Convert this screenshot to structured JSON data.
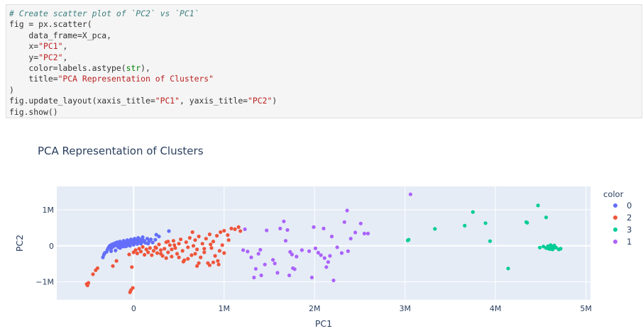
{
  "code_cell": {
    "lines": [
      [
        {
          "t": "# Create scatter plot of `PC2` vs `PC1`",
          "c": "comment"
        }
      ],
      [
        {
          "t": "fig = px.scatter(",
          "c": "kw"
        }
      ],
      [
        {
          "t": "    data_frame=X_pca,",
          "c": "kw"
        }
      ],
      [
        {
          "t": "    x=",
          "c": "kw"
        },
        {
          "t": "\"PC1\"",
          "c": "str"
        },
        {
          "t": ",",
          "c": "kw"
        }
      ],
      [
        {
          "t": "    y=",
          "c": "kw"
        },
        {
          "t": "\"PC2\"",
          "c": "str"
        },
        {
          "t": ",",
          "c": "kw"
        }
      ],
      [
        {
          "t": "    color=labels.astype(",
          "c": "kw"
        },
        {
          "t": "str",
          "c": "builtin"
        },
        {
          "t": "),",
          "c": "kw"
        }
      ],
      [
        {
          "t": "    title=",
          "c": "kw"
        },
        {
          "t": "\"PCA Representation of Clusters\"",
          "c": "str"
        }
      ],
      [
        {
          "t": ")",
          "c": "kw"
        }
      ],
      [
        {
          "t": "fig.update_layout(xaxis_title=",
          "c": "kw"
        },
        {
          "t": "\"PC1\"",
          "c": "str"
        },
        {
          "t": ", yaxis_title=",
          "c": "kw"
        },
        {
          "t": "\"PC2\"",
          "c": "str"
        },
        {
          "t": ")",
          "c": "kw"
        }
      ],
      [
        {
          "t": "fig.show()",
          "c": "kw"
        }
      ]
    ]
  },
  "chart_data": {
    "type": "scatter",
    "title": "PCA Representation of Clusters",
    "xlabel": "PC1",
    "ylabel": "PC2",
    "xlim": [
      -850000,
      5050000
    ],
    "ylim": [
      -1500000,
      1650000
    ],
    "x_ticks": [
      {
        "value": 0,
        "label": "0"
      },
      {
        "value": 1000000,
        "label": "1M"
      },
      {
        "value": 2000000,
        "label": "2M"
      },
      {
        "value": 3000000,
        "label": "3M"
      },
      {
        "value": 4000000,
        "label": "4M"
      },
      {
        "value": 5000000,
        "label": "5M"
      }
    ],
    "y_ticks": [
      {
        "value": -1000000,
        "label": "−1M"
      },
      {
        "value": 0,
        "label": "0"
      },
      {
        "value": 1000000,
        "label": "1M"
      }
    ],
    "grid": true,
    "plot_bg": "#e5ecf6",
    "legend": {
      "title": "color",
      "placement": "right"
    },
    "series": [
      {
        "name": "0",
        "color": "#636efa",
        "points": [
          [
            -340000,
            -320000
          ],
          [
            -330000,
            -250000
          ],
          [
            -320000,
            -200000
          ],
          [
            -300000,
            -170000
          ],
          [
            -290000,
            -110000
          ],
          [
            -280000,
            -60000
          ],
          [
            -270000,
            -20000
          ],
          [
            -260000,
            10000
          ],
          [
            -250000,
            -80000
          ],
          [
            -240000,
            40000
          ],
          [
            -230000,
            -30000
          ],
          [
            -220000,
            60000
          ],
          [
            -210000,
            0
          ],
          [
            -200000,
            80000
          ],
          [
            -190000,
            20000
          ],
          [
            -180000,
            100000
          ],
          [
            -170000,
            -40000
          ],
          [
            -160000,
            50000
          ],
          [
            -150000,
            120000
          ],
          [
            -140000,
            10000
          ],
          [
            -130000,
            80000
          ],
          [
            -120000,
            -20000
          ],
          [
            -110000,
            140000
          ],
          [
            -100000,
            40000
          ],
          [
            -90000,
            100000
          ],
          [
            -80000,
            -10000
          ],
          [
            -70000,
            160000
          ],
          [
            -60000,
            60000
          ],
          [
            -50000,
            120000
          ],
          [
            -40000,
            0
          ],
          [
            -30000,
            180000
          ],
          [
            -20000,
            80000
          ],
          [
            -10000,
            140000
          ],
          [
            0,
            30000
          ],
          [
            10000,
            200000
          ],
          [
            20000,
            100000
          ],
          [
            30000,
            160000
          ],
          [
            40000,
            50000
          ],
          [
            50000,
            220000
          ],
          [
            60000,
            120000
          ],
          [
            70000,
            180000
          ],
          [
            80000,
            60000
          ],
          [
            90000,
            100000
          ],
          [
            100000,
            240000
          ],
          [
            110000,
            150000
          ],
          [
            130000,
            80000
          ],
          [
            150000,
            200000
          ],
          [
            170000,
            120000
          ],
          [
            190000,
            180000
          ],
          [
            210000,
            90000
          ],
          [
            240000,
            170000
          ],
          [
            280000,
            260000
          ],
          [
            390000,
            410000
          ],
          [
            250000,
            310000
          ],
          [
            -200000,
            -130000
          ],
          [
            -150000,
            -60000
          ],
          [
            -100000,
            -20000
          ],
          [
            -60000,
            20000
          ],
          [
            -250000,
            -150000
          ],
          [
            -180000,
            30000
          ],
          [
            -120000,
            70000
          ],
          [
            -80000,
            40000
          ],
          [
            -40000,
            90000
          ],
          [
            0,
            120000
          ],
          [
            40000,
            140000
          ],
          [
            80000,
            170000
          ],
          [
            120000,
            130000
          ],
          [
            160000,
            60000
          ]
        ]
      },
      {
        "name": "2",
        "color": "#ef553b",
        "points": [
          [
            -520000,
            -1060000
          ],
          [
            -510000,
            -1100000
          ],
          [
            -500000,
            -1030000
          ],
          [
            -450000,
            -790000
          ],
          [
            -420000,
            -680000
          ],
          [
            -400000,
            -620000
          ],
          [
            -230000,
            -560000
          ],
          [
            -190000,
            -420000
          ],
          [
            -40000,
            -1290000
          ],
          [
            -30000,
            -1230000
          ],
          [
            -10000,
            -1170000
          ],
          [
            -20000,
            -590000
          ],
          [
            -50000,
            -240000
          ],
          [
            0,
            -180000
          ],
          [
            20000,
            -120000
          ],
          [
            40000,
            -210000
          ],
          [
            60000,
            -80000
          ],
          [
            80000,
            -160000
          ],
          [
            100000,
            -30000
          ],
          [
            120000,
            -250000
          ],
          [
            140000,
            -100000
          ],
          [
            160000,
            -180000
          ],
          [
            180000,
            -60000
          ],
          [
            200000,
            -260000
          ],
          [
            220000,
            -140000
          ],
          [
            240000,
            -40000
          ],
          [
            260000,
            -200000
          ],
          [
            280000,
            40000
          ],
          [
            300000,
            -120000
          ],
          [
            320000,
            -280000
          ],
          [
            340000,
            -80000
          ],
          [
            360000,
            100000
          ],
          [
            380000,
            -180000
          ],
          [
            400000,
            20000
          ],
          [
            420000,
            -300000
          ],
          [
            440000,
            140000
          ],
          [
            460000,
            -60000
          ],
          [
            480000,
            -220000
          ],
          [
            500000,
            60000
          ],
          [
            520000,
            180000
          ],
          [
            540000,
            -140000
          ],
          [
            560000,
            -400000
          ],
          [
            580000,
            100000
          ],
          [
            600000,
            -40000
          ],
          [
            620000,
            220000
          ],
          [
            640000,
            -260000
          ],
          [
            660000,
            0
          ],
          [
            680000,
            160000
          ],
          [
            700000,
            -100000
          ],
          [
            720000,
            260000
          ],
          [
            740000,
            -320000
          ],
          [
            760000,
            60000
          ],
          [
            780000,
            -180000
          ],
          [
            800000,
            200000
          ],
          [
            820000,
            -480000
          ],
          [
            840000,
            320000
          ],
          [
            860000,
            -60000
          ],
          [
            880000,
            120000
          ],
          [
            900000,
            -280000
          ],
          [
            920000,
            280000
          ],
          [
            940000,
            -520000
          ],
          [
            960000,
            380000
          ],
          [
            980000,
            20000
          ],
          [
            1000000,
            420000
          ],
          [
            1040000,
            300000
          ],
          [
            1080000,
            480000
          ],
          [
            1120000,
            460000
          ],
          [
            1160000,
            520000
          ],
          [
            1180000,
            410000
          ],
          [
            700000,
            -560000
          ],
          [
            720000,
            -480000
          ],
          [
            840000,
            -540000
          ],
          [
            880000,
            -460000
          ],
          [
            930000,
            -420000
          ],
          [
            550000,
            -440000
          ],
          [
            600000,
            -360000
          ],
          [
            360000,
            -340000
          ],
          [
            300000,
            -220000
          ],
          [
            250000,
            -60000
          ],
          [
            450000,
            20000
          ],
          [
            500000,
            -320000
          ],
          [
            650000,
            380000
          ],
          [
            780000,
            -80000
          ],
          [
            850000,
            40000
          ],
          [
            1000000,
            -200000
          ],
          [
            1050000,
            160000
          ],
          [
            950000,
            -140000
          ],
          [
            420000,
            -100000
          ],
          [
            380000,
            120000
          ],
          [
            680000,
            -220000
          ]
        ]
      },
      {
        "name": "3",
        "color": "#00cc96",
        "points": [
          [
            3030000,
            150000
          ],
          [
            3040000,
            170000
          ],
          [
            3330000,
            470000
          ],
          [
            3660000,
            560000
          ],
          [
            3750000,
            940000
          ],
          [
            3890000,
            630000
          ],
          [
            3940000,
            130000
          ],
          [
            4140000,
            -630000
          ],
          [
            4340000,
            660000
          ],
          [
            4350000,
            640000
          ],
          [
            4470000,
            1120000
          ],
          [
            4560000,
            790000
          ],
          [
            4490000,
            -50000
          ],
          [
            4530000,
            -20000
          ],
          [
            4560000,
            -60000
          ],
          [
            4580000,
            -10000
          ],
          [
            4600000,
            -90000
          ],
          [
            4610000,
            20000
          ],
          [
            4620000,
            -30000
          ],
          [
            4640000,
            -70000
          ],
          [
            4650000,
            10000
          ],
          [
            4670000,
            -50000
          ],
          [
            4700000,
            -100000
          ],
          [
            4720000,
            -80000
          ],
          [
            4580000,
            -70000
          ],
          [
            4630000,
            -100000
          ]
        ]
      },
      {
        "name": "1",
        "color": "#ab63fa",
        "points": [
          [
            1210000,
            -120000
          ],
          [
            1230000,
            460000
          ],
          [
            1260000,
            -160000
          ],
          [
            1300000,
            -320000
          ],
          [
            1330000,
            -880000
          ],
          [
            1350000,
            -640000
          ],
          [
            1380000,
            -220000
          ],
          [
            1400000,
            -110000
          ],
          [
            1450000,
            -520000
          ],
          [
            1470000,
            430000
          ],
          [
            1540000,
            -390000
          ],
          [
            1560000,
            -490000
          ],
          [
            1590000,
            -750000
          ],
          [
            1620000,
            480000
          ],
          [
            1660000,
            680000
          ],
          [
            1700000,
            440000
          ],
          [
            1730000,
            -170000
          ],
          [
            1750000,
            -240000
          ],
          [
            1760000,
            -620000
          ],
          [
            1780000,
            -650000
          ],
          [
            1800000,
            -300000
          ],
          [
            1940000,
            -150000
          ],
          [
            1970000,
            -880000
          ],
          [
            1990000,
            520000
          ],
          [
            2040000,
            -190000
          ],
          [
            2070000,
            -260000
          ],
          [
            2100000,
            480000
          ],
          [
            2110000,
            -340000
          ],
          [
            2130000,
            -590000
          ],
          [
            2150000,
            -450000
          ],
          [
            2170000,
            -280000
          ],
          [
            2190000,
            260000
          ],
          [
            2210000,
            -960000
          ],
          [
            2250000,
            -40000
          ],
          [
            2300000,
            -200000
          ],
          [
            2330000,
            660000
          ],
          [
            2360000,
            980000
          ],
          [
            2370000,
            -150000
          ],
          [
            2400000,
            200000
          ],
          [
            2450000,
            370000
          ],
          [
            2510000,
            620000
          ],
          [
            2550000,
            340000
          ],
          [
            2590000,
            340000
          ],
          [
            1720000,
            -820000
          ],
          [
            1410000,
            -820000
          ],
          [
            1860000,
            -120000
          ],
          [
            2010000,
            -70000
          ],
          [
            3060000,
            1430000
          ],
          [
            1680000,
            140000
          ]
        ]
      }
    ]
  }
}
